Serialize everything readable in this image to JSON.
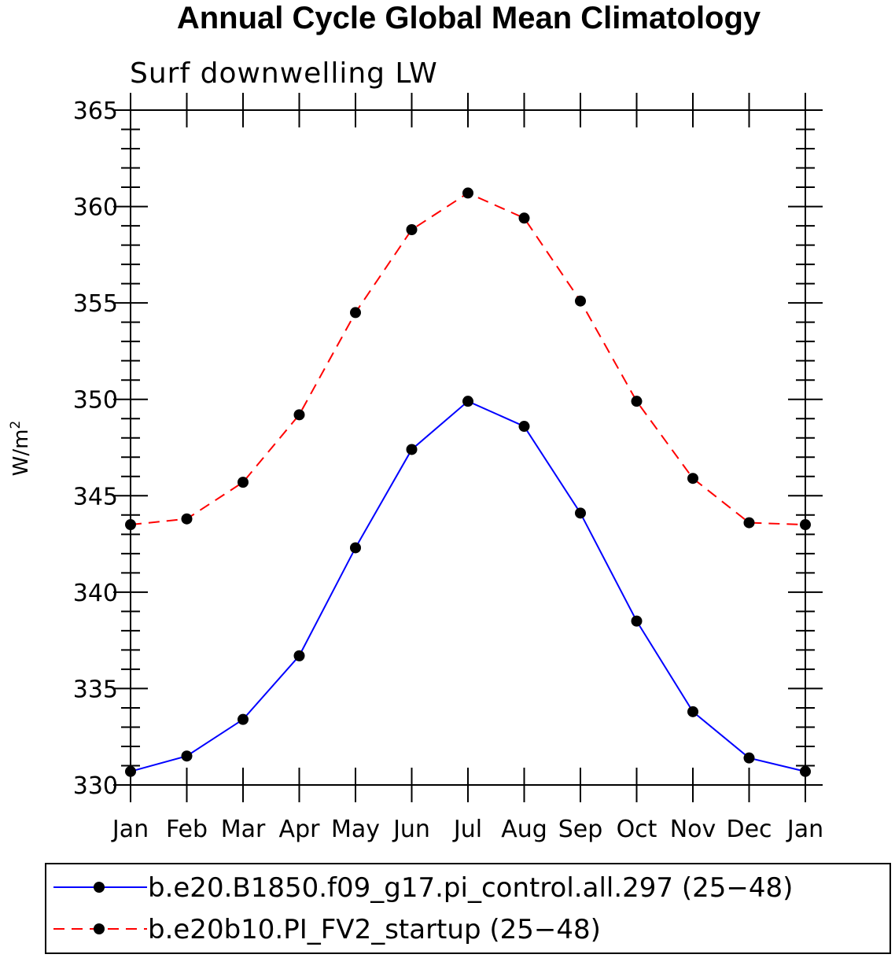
{
  "chart_data": {
    "type": "line",
    "title": "Annual Cycle Global Mean Climatology",
    "subtitle": "Surf downwelling LW",
    "xlabel": "",
    "ylabel": "W/m",
    "ylabel_superscript": "2",
    "categories": [
      "Jan",
      "Feb",
      "Mar",
      "Apr",
      "May",
      "Jun",
      "Jul",
      "Aug",
      "Sep",
      "Oct",
      "Nov",
      "Dec",
      "Jan"
    ],
    "ylim": [
      330,
      365
    ],
    "yticks": [
      330,
      335,
      340,
      345,
      350,
      355,
      360,
      365
    ],
    "series": [
      {
        "name": "b.e20.B1850.f09_g17.pi_control.all.297 (25−48)",
        "color": "#0000ff",
        "dash": "solid",
        "marker_color": "#000000",
        "values": [
          330.7,
          331.5,
          333.4,
          336.7,
          342.3,
          347.4,
          349.9,
          348.6,
          344.1,
          338.5,
          333.8,
          331.4,
          330.7
        ]
      },
      {
        "name": "b.e20b10.PI_FV2_startup (25−48)",
        "color": "#ff0000",
        "dash": "dashed",
        "marker_color": "#000000",
        "values": [
          343.5,
          343.8,
          345.7,
          349.2,
          354.5,
          358.8,
          360.7,
          359.4,
          355.1,
          349.9,
          345.9,
          343.6,
          343.5
        ]
      }
    ],
    "grid": false,
    "legend_position": "bottom"
  }
}
